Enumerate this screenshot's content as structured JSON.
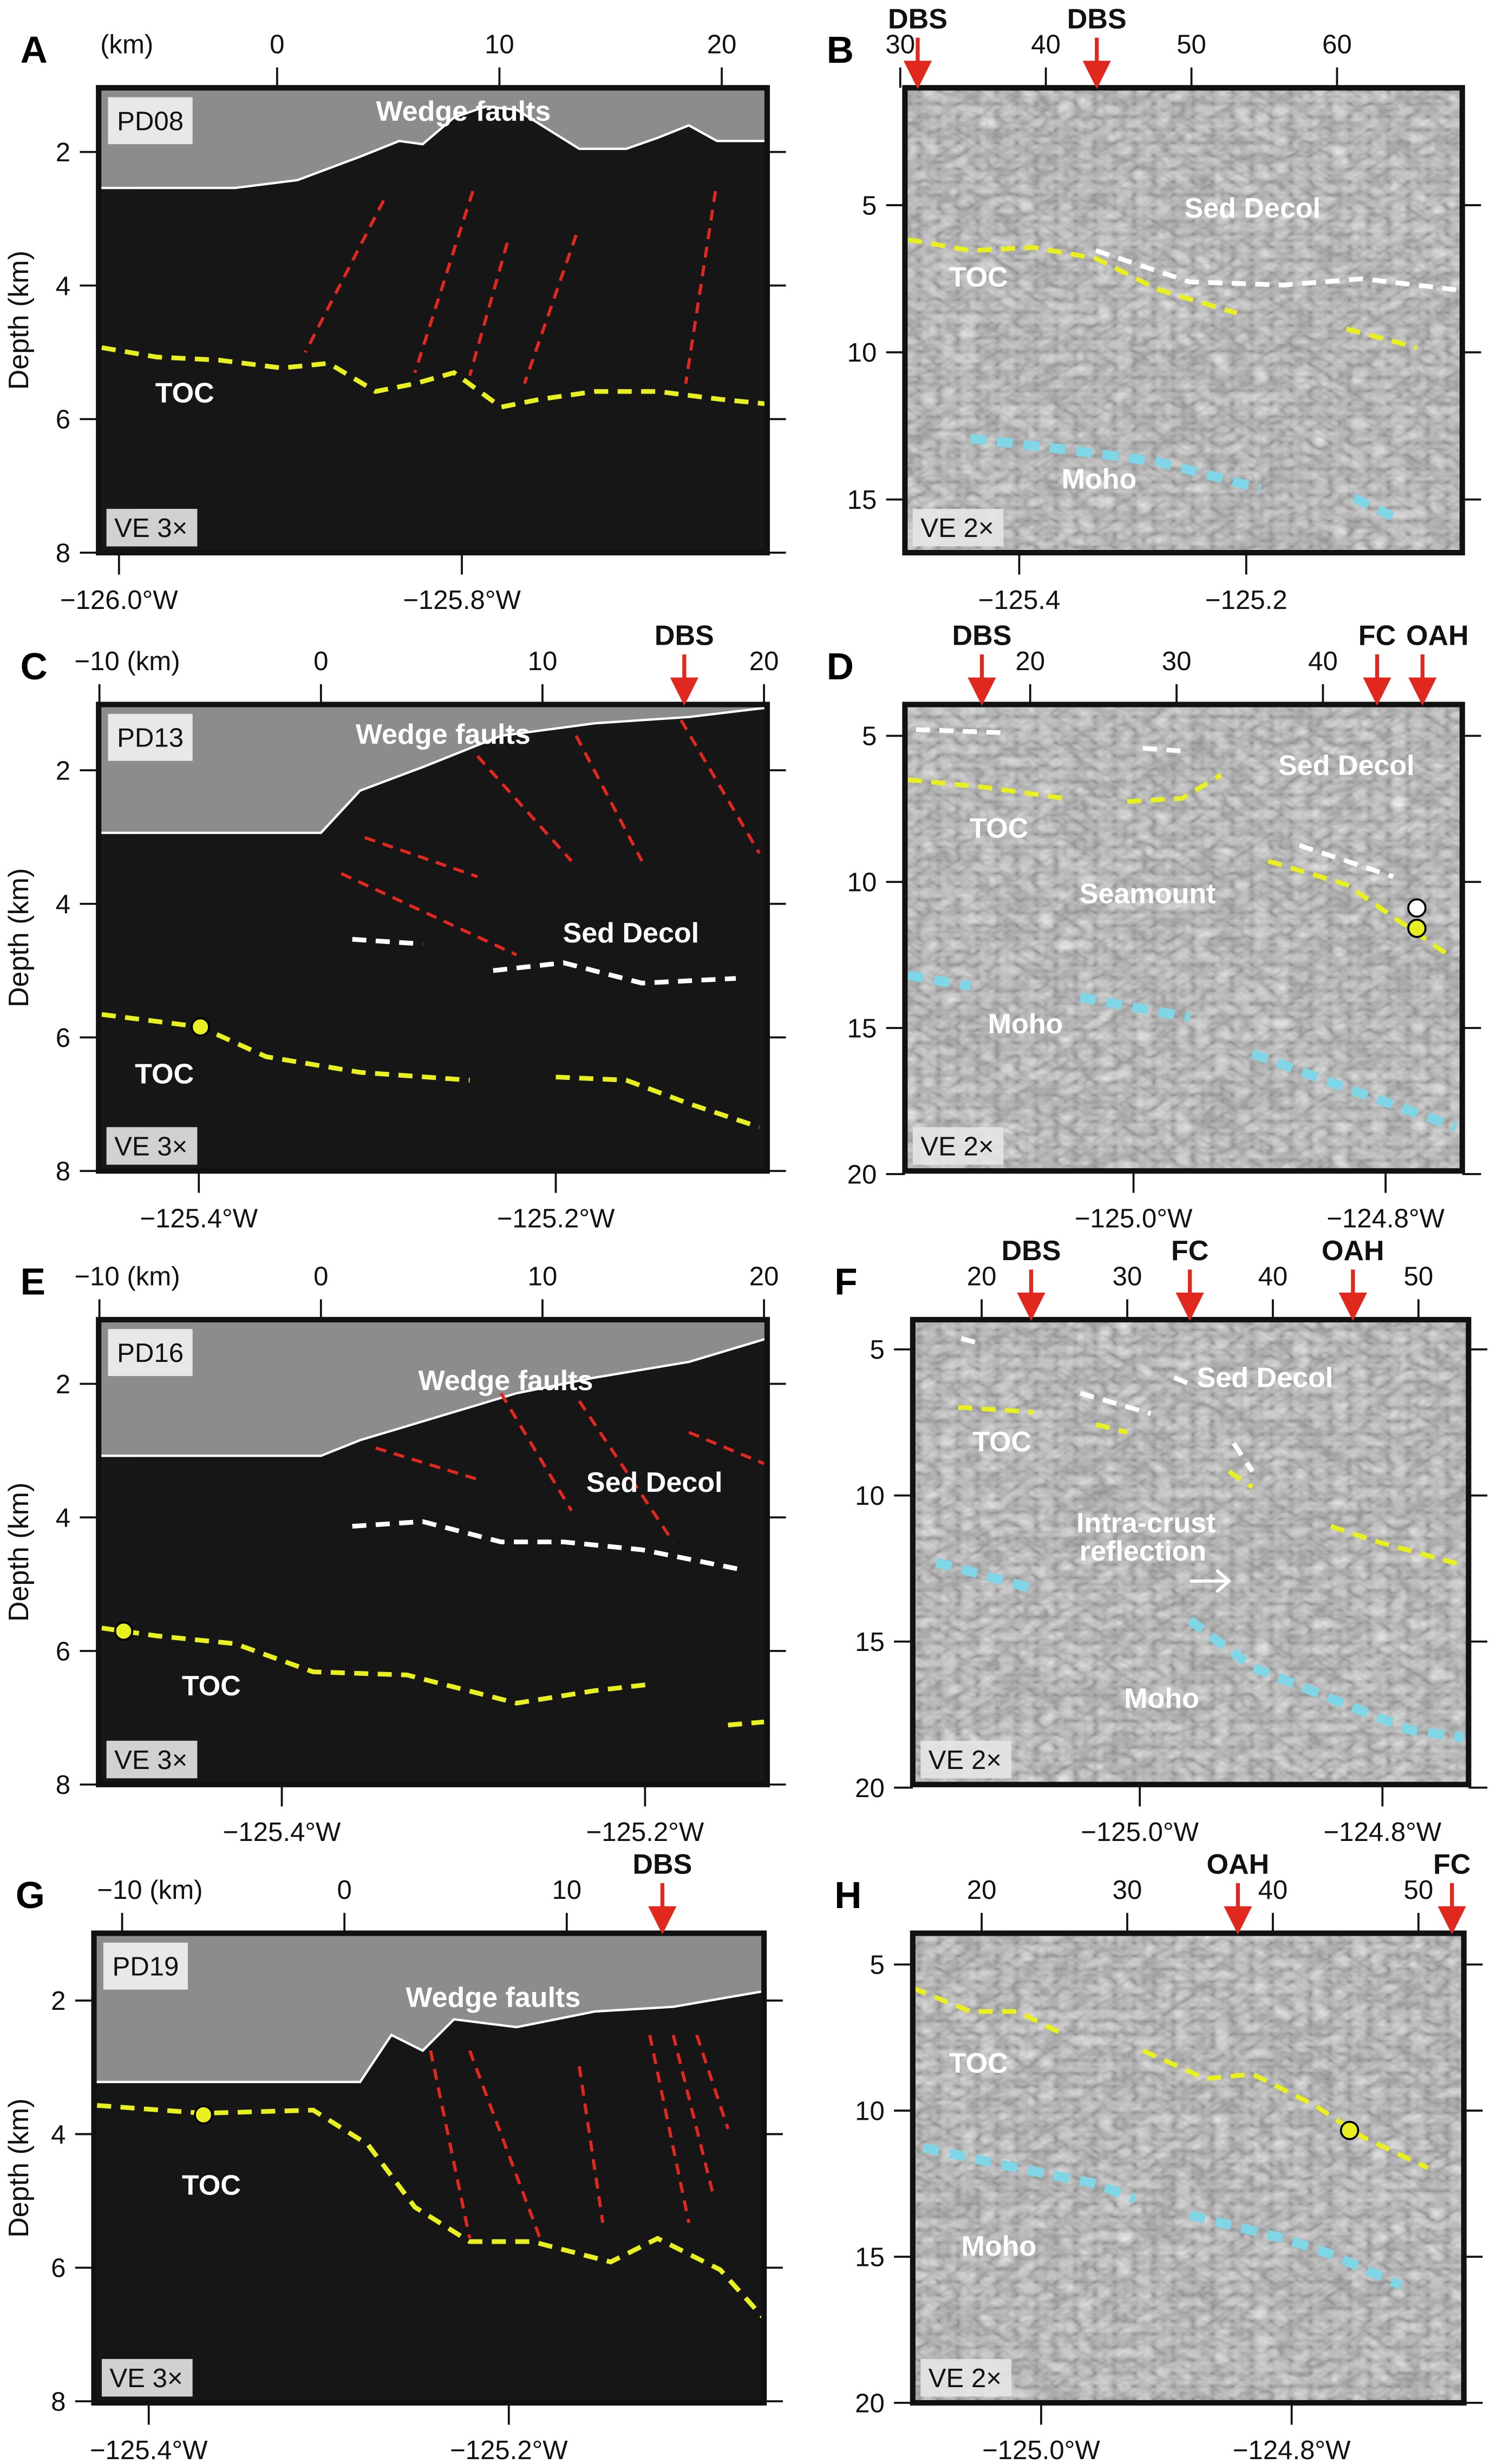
{
  "figure": {
    "depth_axis_label": "Depth (km)",
    "colors": {
      "fault": "#e0281e",
      "toc": "#e8f020",
      "sed_decol": "#ffffff",
      "moho": "#7fd6e6",
      "arrow": "#e0281e",
      "water": "#8c8c8c"
    },
    "panels": [
      {
        "letter": "A",
        "profile": "PD08",
        "ve": "VE 3×",
        "km_ticks": [
          {
            "v": -10,
            "t": "(km)"
          },
          {
            "v": 0,
            "t": "0"
          },
          {
            "v": 10,
            "t": "10"
          },
          {
            "v": 20,
            "t": "20"
          }
        ],
        "depth_ticks": [
          "2",
          "4",
          "6",
          "8"
        ],
        "depth_values": [
          2,
          4,
          6,
          8
        ],
        "lon_ticks": [
          {
            "v": -126.0,
            "t": "−126.0°W"
          },
          {
            "v": -125.8,
            "t": "−125.8°W"
          }
        ],
        "arrows": [],
        "annotations": [
          "Wedge faults",
          "TOC"
        ],
        "show_ylabel": true
      },
      {
        "letter": "B",
        "profile": "",
        "ve": "VE 2×",
        "km_ticks": [
          {
            "v": 30,
            "t": "30"
          },
          {
            "v": 40,
            "t": "40"
          },
          {
            "v": 50,
            "t": "50"
          },
          {
            "v": 60,
            "t": "60"
          }
        ],
        "depth_ticks": [
          "5",
          "10",
          "15"
        ],
        "depth_values": [
          5,
          10,
          15
        ],
        "lon_ticks": [
          {
            "v": -125.4,
            "t": "−125.4"
          },
          {
            "v": -125.2,
            "t": "−125.2"
          }
        ],
        "arrows": [
          {
            "label": "DBS",
            "km": 31.2
          },
          {
            "label": "DBS",
            "km": 43.5
          }
        ],
        "annotations": [
          "Sed Decol",
          "TOC",
          "Moho"
        ],
        "show_ylabel": false
      },
      {
        "letter": "C",
        "profile": "PD13",
        "ve": "VE 3×",
        "km_ticks": [
          {
            "v": -10,
            "t": "−10 (km)"
          },
          {
            "v": 0,
            "t": "0"
          },
          {
            "v": 10,
            "t": "10"
          },
          {
            "v": 20,
            "t": "20"
          }
        ],
        "depth_ticks": [
          "2",
          "4",
          "6",
          "8"
        ],
        "depth_values": [
          2,
          4,
          6,
          8
        ],
        "lon_ticks": [
          {
            "v": -125.4,
            "t": "−125.4°W"
          },
          {
            "v": -125.2,
            "t": "−125.2°W"
          }
        ],
        "arrows": [
          {
            "label": "DBS",
            "km": 16.4
          }
        ],
        "annotations": [
          "Wedge faults",
          "Sed Decol",
          "TOC"
        ],
        "show_ylabel": true
      },
      {
        "letter": "D",
        "profile": "",
        "ve": "VE 2×",
        "km_ticks": [
          {
            "v": 20,
            "t": "20"
          },
          {
            "v": 30,
            "t": "30"
          },
          {
            "v": 40,
            "t": "40"
          }
        ],
        "depth_ticks": [
          "5",
          "10",
          "15",
          "20"
        ],
        "depth_values": [
          5,
          10,
          15,
          20
        ],
        "lon_ticks": [
          {
            "v": -125.0,
            "t": "−125.0°W"
          },
          {
            "v": -124.8,
            "t": "−124.8°W"
          }
        ],
        "arrows": [
          {
            "label": "DBS",
            "km": 16.7
          },
          {
            "label": "FC",
            "km": 43.7
          },
          {
            "label": "OAH",
            "km": 46.8
          }
        ],
        "annotations": [
          "Sed Decol",
          "TOC",
          "Seamount",
          "Moho"
        ],
        "show_ylabel": false
      },
      {
        "letter": "E",
        "profile": "PD16",
        "ve": "VE 3×",
        "km_ticks": [
          {
            "v": -10,
            "t": "−10 (km)"
          },
          {
            "v": 0,
            "t": "0"
          },
          {
            "v": 10,
            "t": "10"
          },
          {
            "v": 20,
            "t": "20"
          }
        ],
        "depth_ticks": [
          "2",
          "4",
          "6",
          "8"
        ],
        "depth_values": [
          2,
          4,
          6,
          8
        ],
        "lon_ticks": [
          {
            "v": -125.4,
            "t": "−125.4°W"
          },
          {
            "v": -125.2,
            "t": "−125.2°W"
          }
        ],
        "arrows": [],
        "annotations": [
          "Wedge faults",
          "Sed Decol",
          "TOC"
        ],
        "show_ylabel": true
      },
      {
        "letter": "F",
        "profile": "",
        "ve": "VE 2×",
        "km_ticks": [
          {
            "v": 20,
            "t": "20"
          },
          {
            "v": 30,
            "t": "30"
          },
          {
            "v": 40,
            "t": "40"
          },
          {
            "v": 50,
            "t": "50"
          }
        ],
        "depth_ticks": [
          "5",
          "10",
          "15",
          "20"
        ],
        "depth_values": [
          5,
          10,
          15,
          20
        ],
        "lon_ticks": [
          {
            "v": -125.0,
            "t": "−125.0°W"
          },
          {
            "v": -124.8,
            "t": "−124.8°W"
          }
        ],
        "arrows": [
          {
            "label": "DBS",
            "km": 23.4
          },
          {
            "label": "FC",
            "km": 34.3
          },
          {
            "label": "OAH",
            "km": 45.5
          }
        ],
        "annotations": [
          "Sed Decol",
          "TOC",
          "Intra-crust",
          "reflection",
          "Moho"
        ],
        "show_ylabel": false
      },
      {
        "letter": "G",
        "profile": "PD19",
        "ve": "VE 3×",
        "km_ticks": [
          {
            "v": -10,
            "t": "−10 (km)"
          },
          {
            "v": 0,
            "t": "0"
          },
          {
            "v": 10,
            "t": "10"
          }
        ],
        "depth_ticks": [
          "2",
          "4",
          "6",
          "8"
        ],
        "depth_values": [
          2,
          4,
          6,
          8
        ],
        "lon_ticks": [
          {
            "v": -125.4,
            "t": "−125.4°W"
          },
          {
            "v": -125.2,
            "t": "−125.2°W"
          }
        ],
        "arrows": [
          {
            "label": "DBS",
            "km": 14.3
          }
        ],
        "annotations": [
          "Wedge faults",
          "TOC"
        ],
        "show_ylabel": true
      },
      {
        "letter": "H",
        "profile": "",
        "ve": "VE 2×",
        "km_ticks": [
          {
            "v": 20,
            "t": "20"
          },
          {
            "v": 30,
            "t": "30"
          },
          {
            "v": 40,
            "t": "40"
          },
          {
            "v": 50,
            "t": "50"
          }
        ],
        "depth_ticks": [
          "5",
          "10",
          "15",
          "20"
        ],
        "depth_values": [
          5,
          10,
          15,
          20
        ],
        "lon_ticks": [
          {
            "v": -125.0,
            "t": "−125.0°W"
          },
          {
            "v": -124.8,
            "t": "−124.8°W"
          }
        ],
        "arrows": [
          {
            "label": "OAH",
            "km": 37.6
          },
          {
            "label": "FC",
            "km": 52.3
          }
        ],
        "annotations": [
          "TOC",
          "Moho"
        ],
        "show_ylabel": false
      }
    ]
  }
}
